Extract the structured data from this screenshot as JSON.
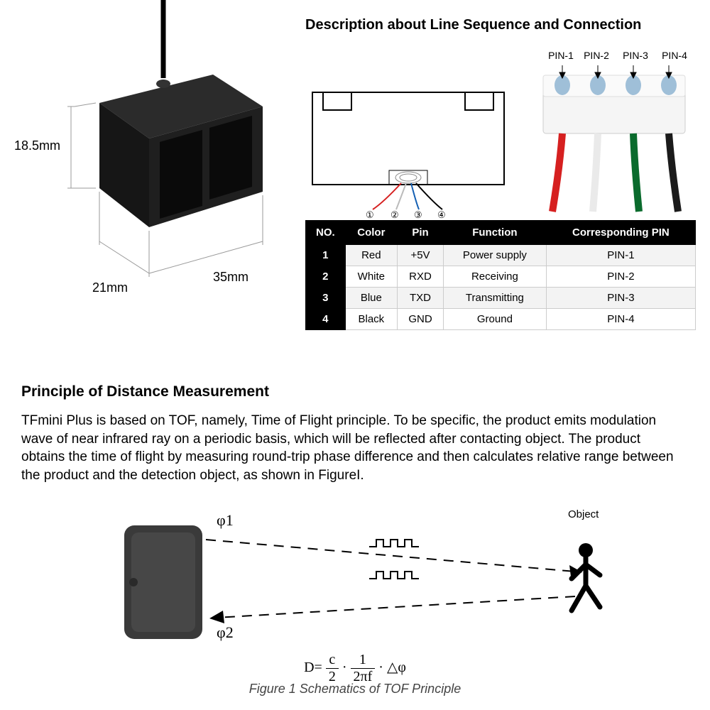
{
  "sensor": {
    "dim_height": "18.5mm",
    "dim_width": "21mm",
    "dim_length": "35mm",
    "body_color": "#1a1a1a",
    "face_color": "#2b2b2b",
    "lens_color": "#0d0d0d",
    "cable_color": "#000000",
    "dim_line_color": "#9a9a9a"
  },
  "connection": {
    "title": "Description about Line Sequence and Connection",
    "pin_labels": [
      "PIN-1",
      "PIN-2",
      "PIN-3",
      "PIN-4"
    ],
    "wire_nums": [
      "①",
      "②",
      "③",
      "④"
    ],
    "wire_colors": [
      "#d62020",
      "#ffffff",
      "#1560b3",
      "#000000"
    ],
    "photo_wire_colors": [
      "#d62020",
      "#ffffff",
      "#0a6b2d",
      "#1b1b1b"
    ],
    "connector_outline": "#000000",
    "pin_crimp_color": "#9fbfd8"
  },
  "table": {
    "headers": [
      "NO.",
      "Color",
      "Pin",
      "Function",
      "Corresponding PIN"
    ],
    "rows": [
      {
        "no": "1",
        "color": "Red",
        "pin": "+5V",
        "function": "Power supply",
        "cpin": "PIN-1"
      },
      {
        "no": "2",
        "color": "White",
        "pin": "RXD",
        "function": "Receiving",
        "cpin": "PIN-2"
      },
      {
        "no": "3",
        "color": "Blue",
        "pin": "TXD",
        "function": "Transmitting",
        "cpin": "PIN-3"
      },
      {
        "no": "4",
        "color": "Black",
        "pin": "GND",
        "function": "Ground",
        "cpin": "PIN-4"
      }
    ],
    "header_bg": "#000000",
    "header_fg": "#ffffff",
    "row_alt_bg": "#f3f3f3"
  },
  "principle": {
    "title": "Principle of Distance Measurement",
    "text": "TFmini Plus is based on TOF, namely, Time of Flight principle. To be specific, the product emits modulation wave of near infrared ray on a periodic basis, which will be reflected after contacting object. The product obtains the time of flight by measuring round-trip phase difference and then calculates relative range between the product and the detection object, as shown in FigureI."
  },
  "tof": {
    "phi1": "φ1",
    "phi2": "φ2",
    "object_label": "Object",
    "formula_html": "D= <span style='display:inline-block;vertical-align:middle;text-align:center;'><span style='display:block;border-bottom:1px solid #000;padding:0 4px;'>c</span><span style='display:block;padding:0 4px;'>2</span></span> · <span style='display:inline-block;vertical-align:middle;text-align:center;'><span style='display:block;border-bottom:1px solid #000;padding:0 4px;'>1</span><span style='display:block;padding:0 4px;'>2πf</span></span> · △φ",
    "caption": "Figure 1 Schematics of TOF Principle",
    "sensor_color": "#3a3a3a",
    "dash_color": "#000000"
  }
}
